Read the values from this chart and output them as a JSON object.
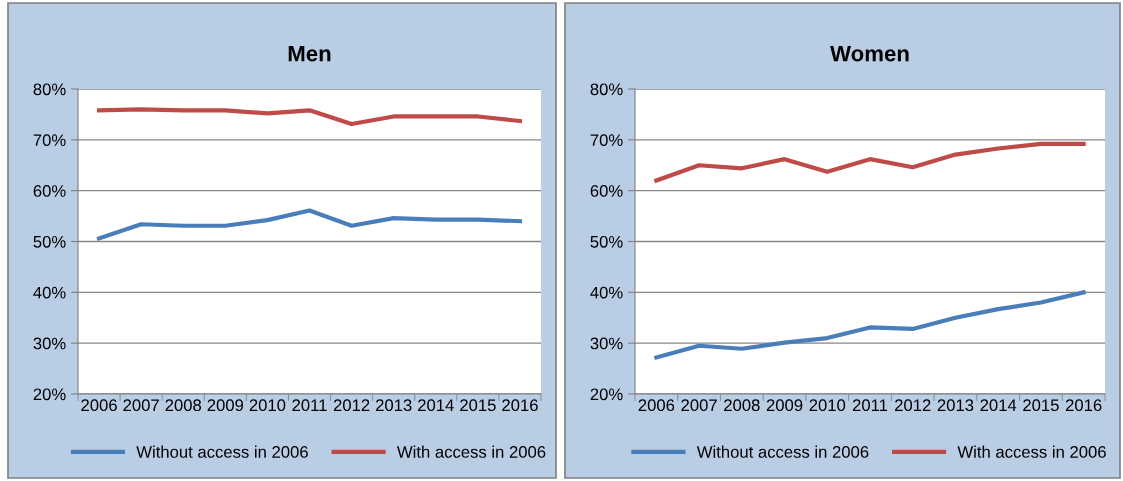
{
  "chart_data": [
    {
      "type": "line",
      "title": "Men",
      "categories": [
        "2006",
        "2007",
        "2008",
        "2009",
        "2010",
        "2011",
        "2012",
        "2013",
        "2014",
        "2015",
        "2016"
      ],
      "series": [
        {
          "name": "Without access in 2006",
          "color": "#4a7ebb",
          "values": [
            50.6,
            53.4,
            53.1,
            53.1,
            54.2,
            56.1,
            53.1,
            54.6,
            54.3,
            54.3,
            54.0
          ]
        },
        {
          "name": "With access in 2006",
          "color": "#be4b48",
          "values": [
            75.8,
            76.0,
            75.8,
            75.8,
            75.2,
            75.8,
            73.1,
            74.6,
            74.6,
            74.6,
            73.7
          ]
        }
      ],
      "ylim": [
        20,
        80
      ],
      "yticks": [
        {
          "value": 20,
          "label": "20%"
        },
        {
          "value": 30,
          "label": "30%"
        },
        {
          "value": 40,
          "label": "40%"
        },
        {
          "value": 50,
          "label": "50%"
        },
        {
          "value": 60,
          "label": "60%"
        },
        {
          "value": 70,
          "label": "70%"
        },
        {
          "value": 80,
          "label": "80%"
        }
      ],
      "grid": "y",
      "legend": "bottom",
      "marker": "none",
      "line_style": "solid"
    },
    {
      "type": "line",
      "title": "Women",
      "categories": [
        "2006",
        "2007",
        "2008",
        "2009",
        "2010",
        "2011",
        "2012",
        "2013",
        "2014",
        "2015",
        "2016"
      ],
      "series": [
        {
          "name": "Without access in 2006",
          "color": "#4a7ebb",
          "values": [
            27.2,
            29.5,
            28.9,
            30.1,
            31.0,
            33.1,
            32.8,
            35.0,
            36.7,
            38.0,
            40.0
          ]
        },
        {
          "name": "With access in 2006",
          "color": "#be4b48",
          "values": [
            62.0,
            65.0,
            64.4,
            66.2,
            63.7,
            66.2,
            64.6,
            67.1,
            68.3,
            69.2,
            69.2
          ]
        }
      ],
      "ylim": [
        20,
        80
      ],
      "yticks": [
        {
          "value": 20,
          "label": "20%"
        },
        {
          "value": 30,
          "label": "30%"
        },
        {
          "value": 40,
          "label": "40%"
        },
        {
          "value": 50,
          "label": "50%"
        },
        {
          "value": 60,
          "label": "60%"
        },
        {
          "value": 70,
          "label": "70%"
        },
        {
          "value": 80,
          "label": "80%"
        }
      ],
      "grid": "y",
      "legend": "bottom",
      "marker": "none",
      "line_style": "solid"
    }
  ]
}
